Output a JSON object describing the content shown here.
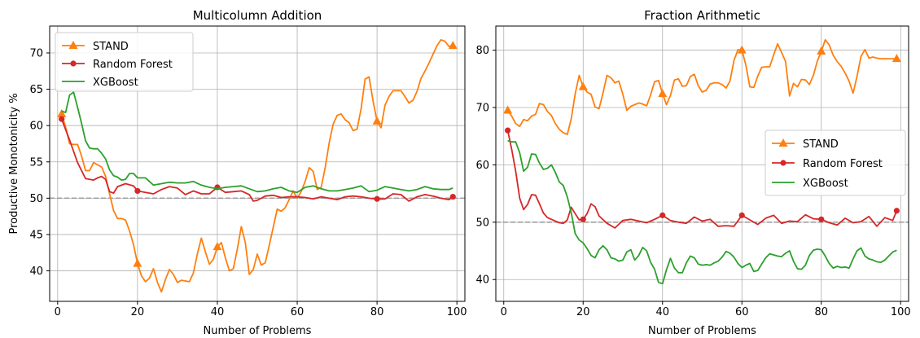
{
  "colors": {
    "stand": "#ff7f0e",
    "random_forest": "#d62728",
    "xgboost": "#2ca02c",
    "reference_line": "#a0a0a0",
    "grid": "#b0b0b0"
  },
  "chart_data": [
    {
      "type": "line",
      "title": "Multicolumn Addition",
      "xlabel": "Number of Problems",
      "ylabel": "Productive Monotonicity %",
      "xlim": [
        -2,
        102
      ],
      "ylim": [
        35.8,
        73.7
      ],
      "xticks": [
        0,
        20,
        40,
        60,
        80,
        100
      ],
      "yticks": [
        40,
        45,
        50,
        55,
        60,
        65,
        70
      ],
      "grid": true,
      "legend_position": "top-left",
      "reference_y": 50,
      "series": [
        {
          "name": "STAND",
          "color_key": "stand",
          "marker": "triangle",
          "marker_x": [
            1,
            20,
            40,
            80,
            99
          ],
          "x": [
            1,
            2,
            3,
            4,
            5,
            6,
            7,
            8,
            9,
            10,
            11,
            12,
            13,
            14,
            15,
            16,
            17,
            18,
            19,
            20,
            21,
            22,
            23,
            24,
            25,
            26,
            27,
            28,
            29,
            30,
            31,
            32,
            33,
            34,
            35,
            36,
            37,
            38,
            39,
            40,
            41,
            42,
            43,
            44,
            45,
            46,
            47,
            48,
            49,
            50,
            51,
            52,
            53,
            54,
            55,
            56,
            57,
            58,
            59,
            60,
            61,
            62,
            63,
            64,
            65,
            66,
            67,
            68,
            69,
            70,
            71,
            72,
            73,
            74,
            75,
            76,
            77,
            78,
            79,
            80,
            81,
            82,
            83,
            84,
            85,
            86,
            87,
            88,
            89,
            90,
            91,
            92,
            93,
            94,
            95,
            96,
            97,
            98,
            99
          ],
          "y": [
            61.6,
            59.8,
            57.5,
            57.4,
            57.4,
            55.8,
            53.8,
            53.8,
            54.9,
            54.6,
            54.3,
            53.0,
            50.6,
            48.3,
            47.2,
            47.2,
            47.0,
            45.5,
            43.6,
            41.0,
            39.3,
            38.5,
            39.0,
            40.3,
            38.4,
            37.1,
            38.8,
            40.2,
            39.5,
            38.4,
            38.7,
            38.6,
            38.5,
            39.7,
            42.3,
            44.5,
            42.6,
            40.9,
            41.6,
            43.3,
            43.9,
            41.8,
            40.0,
            40.3,
            43.0,
            46.1,
            43.9,
            39.5,
            40.2,
            42.3,
            40.8,
            41.1,
            43.5,
            46.0,
            48.5,
            48.2,
            48.7,
            49.8,
            51.0,
            50.0,
            50.9,
            52.3,
            54.2,
            53.7,
            51.2,
            51.5,
            54.2,
            57.6,
            60.2,
            61.4,
            61.6,
            60.8,
            60.4,
            59.3,
            59.5,
            62.3,
            66.4,
            66.7,
            63.4,
            60.6,
            59.7,
            62.8,
            64.0,
            64.8,
            64.8,
            64.8,
            64.0,
            63.1,
            63.5,
            64.7,
            66.5,
            67.5,
            68.6,
            69.8,
            71.0,
            71.8,
            71.6,
            70.9,
            71.0
          ]
        },
        {
          "name": "Random Forest",
          "color_key": "random_forest",
          "marker": "circle",
          "marker_x": [
            1,
            20,
            40,
            80,
            99
          ],
          "x": [
            1,
            3,
            5,
            7,
            9,
            10,
            11,
            12,
            13,
            14,
            15,
            17,
            19,
            20,
            22,
            24,
            26,
            28,
            30,
            32,
            34,
            36,
            38,
            40,
            42,
            44,
            46,
            48,
            49,
            50,
            52,
            54,
            56,
            58,
            60,
            62,
            64,
            66,
            68,
            70,
            72,
            74,
            76,
            78,
            80,
            82,
            84,
            86,
            88,
            90,
            92,
            94,
            96,
            98,
            99
          ],
          "y": [
            60.9,
            58.0,
            54.9,
            52.7,
            52.5,
            52.8,
            53.0,
            52.6,
            50.9,
            50.7,
            51.6,
            52.0,
            51.7,
            51.0,
            50.8,
            50.6,
            51.2,
            51.6,
            51.4,
            50.5,
            51.0,
            50.6,
            50.6,
            51.5,
            50.8,
            50.9,
            51.0,
            50.5,
            49.6,
            49.7,
            50.3,
            50.4,
            50.1,
            50.2,
            50.2,
            50.1,
            49.9,
            50.2,
            50.0,
            49.8,
            50.2,
            50.3,
            50.2,
            50.0,
            49.9,
            49.9,
            50.6,
            50.5,
            49.6,
            50.2,
            50.5,
            50.3,
            50.0,
            49.8,
            50.2
          ]
        },
        {
          "name": "XGBoost",
          "color_key": "xgboost",
          "marker": "none",
          "marker_x": [],
          "x": [
            1,
            2,
            3,
            4,
            5,
            6,
            7,
            8,
            9,
            10,
            11,
            12,
            13,
            14,
            15,
            16,
            17,
            18,
            19,
            20,
            22,
            24,
            26,
            28,
            30,
            32,
            34,
            36,
            38,
            40,
            42,
            44,
            46,
            48,
            50,
            52,
            54,
            56,
            58,
            60,
            62,
            64,
            66,
            68,
            70,
            72,
            74,
            76,
            78,
            80,
            82,
            84,
            86,
            88,
            90,
            92,
            94,
            96,
            98,
            99
          ],
          "y": [
            62.0,
            61.8,
            64.2,
            64.6,
            62.5,
            60.3,
            57.9,
            56.9,
            56.8,
            56.8,
            56.2,
            55.4,
            53.9,
            53.1,
            52.9,
            52.5,
            52.6,
            53.4,
            53.4,
            52.8,
            52.8,
            51.8,
            52.0,
            52.2,
            52.1,
            52.1,
            52.3,
            51.8,
            51.5,
            51.3,
            51.5,
            51.6,
            51.7,
            51.3,
            50.9,
            51.0,
            51.3,
            51.5,
            51.0,
            50.8,
            51.5,
            51.7,
            51.3,
            51.0,
            51.0,
            51.2,
            51.4,
            51.7,
            50.9,
            51.1,
            51.6,
            51.4,
            51.2,
            51.0,
            51.2,
            51.6,
            51.3,
            51.2,
            51.2,
            51.4
          ]
        }
      ]
    },
    {
      "type": "line",
      "title": "Fraction Arithmetic",
      "xlabel": "Number of Problems",
      "ylabel": "",
      "xlim": [
        -2,
        102
      ],
      "ylim": [
        36.2,
        84.2
      ],
      "xticks": [
        0,
        20,
        40,
        60,
        80,
        100
      ],
      "yticks": [
        40,
        50,
        60,
        70,
        80
      ],
      "grid": true,
      "legend_position": "center-right",
      "reference_y": 50,
      "series": [
        {
          "name": "STAND",
          "color_key": "stand",
          "marker": "triangle",
          "marker_x": [
            1,
            20,
            40,
            60,
            80,
            99
          ],
          "x": [
            1,
            2,
            3,
            4,
            5,
            6,
            7,
            8,
            9,
            10,
            11,
            12,
            13,
            14,
            15,
            16,
            17,
            18,
            19,
            20,
            21,
            22,
            23,
            24,
            25,
            26,
            27,
            28,
            29,
            30,
            31,
            32,
            33,
            34,
            35,
            36,
            37,
            38,
            39,
            40,
            41,
            42,
            43,
            44,
            45,
            46,
            47,
            48,
            49,
            50,
            51,
            52,
            53,
            54,
            55,
            56,
            57,
            58,
            59,
            60,
            61,
            62,
            63,
            64,
            65,
            66,
            67,
            68,
            69,
            70,
            71,
            72,
            73,
            74,
            75,
            76,
            77,
            78,
            79,
            80,
            81,
            82,
            83,
            84,
            85,
            86,
            87,
            88,
            89,
            90,
            91,
            92,
            93,
            94,
            95,
            96,
            97,
            98,
            99
          ],
          "y": [
            69.5,
            68.5,
            67.2,
            66.7,
            67.9,
            67.7,
            68.5,
            68.8,
            70.7,
            70.5,
            69.3,
            68.6,
            67.2,
            66.2,
            65.6,
            65.3,
            68.0,
            72.4,
            75.6,
            73.6,
            72.7,
            72.3,
            70.1,
            69.8,
            72.5,
            75.6,
            75.2,
            74.3,
            74.6,
            72.3,
            69.5,
            70.2,
            70.5,
            70.8,
            70.6,
            70.3,
            72.2,
            74.5,
            74.7,
            72.4,
            70.5,
            72.1,
            74.8,
            75.0,
            73.7,
            73.8,
            75.4,
            75.8,
            73.8,
            72.7,
            73.0,
            74.1,
            74.3,
            74.3,
            74.0,
            73.4,
            74.6,
            78.2,
            80.1,
            80.0,
            77.4,
            73.6,
            73.5,
            75.5,
            77.0,
            77.1,
            77.1,
            79.2,
            81.1,
            79.6,
            78.0,
            72.0,
            74.2,
            73.6,
            74.9,
            74.8,
            74.0,
            75.6,
            78.1,
            79.8,
            81.8,
            80.9,
            79.1,
            78.0,
            77.2,
            76.0,
            74.6,
            72.5,
            75.4,
            78.9,
            80.1,
            78.6,
            78.8,
            78.6,
            78.5,
            78.5,
            78.5,
            78.5,
            78.5
          ]
        },
        {
          "name": "Random Forest",
          "color_key": "random_forest",
          "marker": "circle",
          "marker_x": [
            1,
            20,
            40,
            60,
            80,
            99
          ],
          "x": [
            1,
            2,
            3,
            4,
            5,
            6,
            7,
            8,
            9,
            10,
            11,
            12,
            13,
            14,
            15,
            16,
            17,
            18,
            19,
            20,
            21,
            22,
            23,
            24,
            26,
            28,
            30,
            32,
            34,
            36,
            38,
            40,
            42,
            44,
            46,
            48,
            50,
            52,
            54,
            56,
            58,
            60,
            62,
            64,
            66,
            68,
            70,
            72,
            74,
            76,
            78,
            80,
            82,
            84,
            86,
            88,
            90,
            92,
            94,
            96,
            98,
            99
          ],
          "y": [
            66.0,
            62.7,
            58.9,
            54.2,
            52.2,
            53.1,
            54.8,
            54.7,
            53.2,
            51.6,
            50.8,
            50.5,
            50.2,
            49.9,
            49.8,
            50.4,
            52.6,
            51.5,
            50.4,
            50.5,
            51.5,
            53.2,
            52.7,
            51.1,
            49.8,
            49.0,
            50.3,
            50.5,
            50.2,
            49.9,
            50.5,
            51.2,
            50.3,
            50.0,
            49.8,
            50.9,
            50.2,
            50.5,
            49.3,
            49.4,
            49.3,
            51.2,
            50.4,
            49.6,
            50.7,
            51.2,
            49.8,
            50.2,
            50.1,
            51.3,
            50.6,
            50.5,
            49.9,
            49.5,
            50.7,
            49.9,
            50.1,
            51.0,
            49.3,
            50.8,
            50.3,
            52.0
          ]
        },
        {
          "name": "XGBoost",
          "color_key": "xgboost",
          "marker": "none",
          "marker_x": [],
          "x": [
            1,
            2,
            3,
            4,
            5,
            6,
            7,
            8,
            9,
            10,
            11,
            12,
            13,
            14,
            15,
            16,
            17,
            18,
            19,
            20,
            21,
            22,
            23,
            24,
            25,
            26,
            27,
            28,
            29,
            30,
            31,
            32,
            33,
            34,
            35,
            36,
            37,
            38,
            39,
            40,
            41,
            42,
            43,
            44,
            45,
            46,
            47,
            48,
            49,
            50,
            51,
            52,
            53,
            54,
            55,
            56,
            57,
            58,
            59,
            60,
            61,
            62,
            63,
            64,
            65,
            66,
            67,
            68,
            69,
            70,
            71,
            72,
            73,
            74,
            75,
            76,
            77,
            78,
            79,
            80,
            81,
            82,
            83,
            84,
            85,
            86,
            87,
            88,
            89,
            90,
            91,
            92,
            93,
            94,
            95,
            96,
            97,
            98,
            99
          ],
          "y": [
            64.2,
            64.0,
            64.0,
            62.1,
            58.9,
            59.6,
            61.9,
            61.8,
            60.3,
            59.2,
            59.4,
            60.0,
            58.7,
            57.0,
            56.4,
            54.4,
            51.7,
            48.0,
            46.9,
            46.4,
            45.4,
            44.2,
            43.8,
            45.2,
            45.9,
            45.2,
            43.8,
            43.6,
            43.2,
            43.4,
            44.8,
            45.2,
            43.4,
            44.2,
            45.6,
            45.0,
            43.0,
            41.8,
            39.5,
            39.3,
            41.7,
            43.7,
            42.0,
            41.2,
            41.2,
            42.9,
            44.1,
            43.8,
            42.7,
            42.5,
            42.6,
            42.5,
            42.9,
            43.2,
            43.9,
            44.9,
            44.6,
            43.9,
            42.8,
            42.1,
            42.5,
            42.8,
            41.4,
            41.6,
            42.7,
            43.8,
            44.5,
            44.3,
            44.1,
            44.0,
            44.6,
            45.0,
            43.2,
            41.9,
            41.8,
            42.5,
            44.2,
            45.1,
            45.3,
            45.2,
            44.1,
            42.8,
            42.0,
            42.3,
            42.1,
            42.2,
            42.0,
            43.6,
            45.0,
            45.5,
            44.1,
            43.6,
            43.4,
            43.1,
            43.0,
            43.4,
            44.1,
            44.8,
            45.1
          ]
        }
      ]
    }
  ]
}
